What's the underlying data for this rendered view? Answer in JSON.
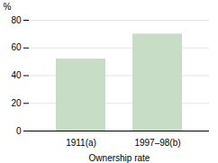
{
  "chart_data": {
    "type": "bar",
    "categories": [
      "1911(a)",
      "1997–98(b)"
    ],
    "values": [
      52,
      70
    ],
    "color": "#c8ddc5",
    "xlabel": "Ownership rate",
    "ylabel": "%",
    "ylim": [
      0,
      80
    ],
    "yticks": [
      0,
      20,
      40,
      60,
      80
    ],
    "grid": true
  }
}
